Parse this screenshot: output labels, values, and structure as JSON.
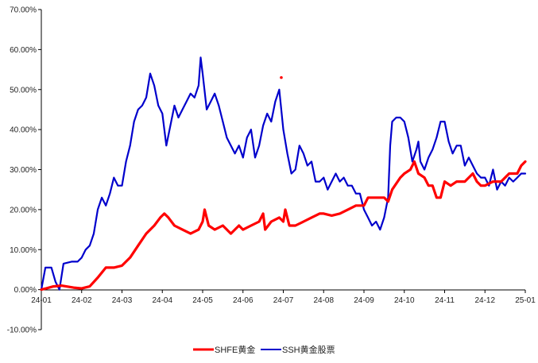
{
  "chart_data": {
    "type": "line",
    "title": "",
    "xlabel": "",
    "ylabel": "",
    "ylim": [
      -0.1,
      0.7
    ],
    "yticks": [
      -0.1,
      0.0,
      0.1,
      0.2,
      0.3,
      0.4,
      0.5,
      0.6,
      0.7
    ],
    "ytick_labels": [
      "-10.00%",
      "0.00%",
      "10.00%",
      "20.00%",
      "30.00%",
      "40.00%",
      "50.00%",
      "60.00%",
      "70.00%"
    ],
    "x_ticks": [
      "24-01",
      "24-02",
      "24-03",
      "24-04",
      "24-05",
      "24-06",
      "24-07",
      "24-08",
      "24-09",
      "24-10",
      "24-11",
      "24-12",
      "25-01"
    ],
    "grid": false,
    "legend_position": "bottom",
    "series": [
      {
        "name": "SHFE黄金",
        "color": "#ff0000",
        "points": [
          [
            0,
            0.0
          ],
          [
            0.12,
            0.003
          ],
          [
            0.3,
            0.008
          ],
          [
            0.5,
            0.01
          ],
          [
            0.8,
            0.005
          ],
          [
            1.0,
            0.003
          ],
          [
            1.2,
            0.008
          ],
          [
            1.4,
            0.03
          ],
          [
            1.6,
            0.055
          ],
          [
            1.8,
            0.055
          ],
          [
            2.0,
            0.06
          ],
          [
            2.2,
            0.08
          ],
          [
            2.4,
            0.11
          ],
          [
            2.6,
            0.14
          ],
          [
            2.8,
            0.16
          ],
          [
            2.95,
            0.18
          ],
          [
            3.05,
            0.19
          ],
          [
            3.15,
            0.18
          ],
          [
            3.3,
            0.16
          ],
          [
            3.5,
            0.15
          ],
          [
            3.7,
            0.14
          ],
          [
            3.9,
            0.15
          ],
          [
            4.0,
            0.17
          ],
          [
            4.05,
            0.2
          ],
          [
            4.15,
            0.16
          ],
          [
            4.3,
            0.15
          ],
          [
            4.5,
            0.16
          ],
          [
            4.7,
            0.14
          ],
          [
            4.9,
            0.16
          ],
          [
            5.0,
            0.15
          ],
          [
            5.2,
            0.16
          ],
          [
            5.4,
            0.17
          ],
          [
            5.5,
            0.19
          ],
          [
            5.55,
            0.15
          ],
          [
            5.7,
            0.17
          ],
          [
            5.9,
            0.18
          ],
          [
            6.0,
            0.17
          ],
          [
            6.05,
            0.2
          ],
          [
            6.15,
            0.16
          ],
          [
            6.3,
            0.16
          ],
          [
            6.5,
            0.17
          ],
          [
            6.7,
            0.18
          ],
          [
            6.9,
            0.19
          ],
          [
            7.0,
            0.19
          ],
          [
            7.2,
            0.185
          ],
          [
            7.4,
            0.19
          ],
          [
            7.6,
            0.2
          ],
          [
            7.8,
            0.21
          ],
          [
            8.0,
            0.21
          ],
          [
            8.1,
            0.23
          ],
          [
            8.3,
            0.23
          ],
          [
            8.5,
            0.23
          ],
          [
            8.6,
            0.22
          ],
          [
            8.7,
            0.25
          ],
          [
            8.9,
            0.28
          ],
          [
            9.0,
            0.29
          ],
          [
            9.15,
            0.3
          ],
          [
            9.25,
            0.32
          ],
          [
            9.35,
            0.29
          ],
          [
            9.5,
            0.28
          ],
          [
            9.6,
            0.26
          ],
          [
            9.7,
            0.26
          ],
          [
            9.8,
            0.23
          ],
          [
            9.9,
            0.23
          ],
          [
            10.0,
            0.27
          ],
          [
            10.15,
            0.26
          ],
          [
            10.3,
            0.27
          ],
          [
            10.5,
            0.27
          ],
          [
            10.7,
            0.29
          ],
          [
            10.8,
            0.27
          ],
          [
            10.9,
            0.26
          ],
          [
            11.0,
            0.26
          ],
          [
            11.2,
            0.27
          ],
          [
            11.4,
            0.27
          ],
          [
            11.6,
            0.29
          ],
          [
            11.8,
            0.29
          ],
          [
            11.9,
            0.31
          ],
          [
            12.0,
            0.32
          ]
        ]
      },
      {
        "name": "SSH黄金股票",
        "color": "#0000cc",
        "points": [
          [
            0,
            0.0
          ],
          [
            0.1,
            0.055
          ],
          [
            0.25,
            0.055
          ],
          [
            0.35,
            0.02
          ],
          [
            0.45,
            0.0
          ],
          [
            0.55,
            0.065
          ],
          [
            0.75,
            0.07
          ],
          [
            0.9,
            0.07
          ],
          [
            1.0,
            0.08
          ],
          [
            1.1,
            0.1
          ],
          [
            1.2,
            0.11
          ],
          [
            1.3,
            0.14
          ],
          [
            1.4,
            0.2
          ],
          [
            1.5,
            0.23
          ],
          [
            1.6,
            0.21
          ],
          [
            1.7,
            0.24
          ],
          [
            1.8,
            0.28
          ],
          [
            1.9,
            0.26
          ],
          [
            2.0,
            0.26
          ],
          [
            2.1,
            0.32
          ],
          [
            2.2,
            0.36
          ],
          [
            2.3,
            0.42
          ],
          [
            2.4,
            0.45
          ],
          [
            2.5,
            0.46
          ],
          [
            2.6,
            0.48
          ],
          [
            2.7,
            0.54
          ],
          [
            2.8,
            0.51
          ],
          [
            2.9,
            0.46
          ],
          [
            3.0,
            0.44
          ],
          [
            3.1,
            0.36
          ],
          [
            3.2,
            0.41
          ],
          [
            3.3,
            0.46
          ],
          [
            3.4,
            0.43
          ],
          [
            3.5,
            0.45
          ],
          [
            3.6,
            0.47
          ],
          [
            3.7,
            0.49
          ],
          [
            3.8,
            0.48
          ],
          [
            3.9,
            0.51
          ],
          [
            3.95,
            0.58
          ],
          [
            4.0,
            0.54
          ],
          [
            4.1,
            0.45
          ],
          [
            4.2,
            0.47
          ],
          [
            4.3,
            0.49
          ],
          [
            4.4,
            0.46
          ],
          [
            4.5,
            0.42
          ],
          [
            4.6,
            0.38
          ],
          [
            4.7,
            0.36
          ],
          [
            4.8,
            0.34
          ],
          [
            4.9,
            0.36
          ],
          [
            5.0,
            0.33
          ],
          [
            5.1,
            0.38
          ],
          [
            5.2,
            0.4
          ],
          [
            5.3,
            0.33
          ],
          [
            5.4,
            0.36
          ],
          [
            5.5,
            0.41
          ],
          [
            5.6,
            0.44
          ],
          [
            5.7,
            0.42
          ],
          [
            5.8,
            0.47
          ],
          [
            5.9,
            0.5
          ],
          [
            6.0,
            0.4
          ],
          [
            6.1,
            0.34
          ],
          [
            6.2,
            0.29
          ],
          [
            6.3,
            0.3
          ],
          [
            6.4,
            0.36
          ],
          [
            6.5,
            0.34
          ],
          [
            6.6,
            0.31
          ],
          [
            6.7,
            0.32
          ],
          [
            6.8,
            0.27
          ],
          [
            6.9,
            0.27
          ],
          [
            7.0,
            0.28
          ],
          [
            7.1,
            0.25
          ],
          [
            7.2,
            0.27
          ],
          [
            7.3,
            0.29
          ],
          [
            7.4,
            0.27
          ],
          [
            7.5,
            0.28
          ],
          [
            7.6,
            0.26
          ],
          [
            7.7,
            0.26
          ],
          [
            7.8,
            0.24
          ],
          [
            7.9,
            0.24
          ],
          [
            8.0,
            0.2
          ],
          [
            8.1,
            0.18
          ],
          [
            8.2,
            0.16
          ],
          [
            8.3,
            0.17
          ],
          [
            8.4,
            0.15
          ],
          [
            8.5,
            0.18
          ],
          [
            8.6,
            0.23
          ],
          [
            8.65,
            0.36
          ],
          [
            8.7,
            0.42
          ],
          [
            8.8,
            0.43
          ],
          [
            8.9,
            0.43
          ],
          [
            9.0,
            0.42
          ],
          [
            9.1,
            0.38
          ],
          [
            9.2,
            0.32
          ],
          [
            9.3,
            0.35
          ],
          [
            9.35,
            0.37
          ],
          [
            9.4,
            0.32
          ],
          [
            9.5,
            0.3
          ],
          [
            9.6,
            0.33
          ],
          [
            9.7,
            0.35
          ],
          [
            9.8,
            0.38
          ],
          [
            9.9,
            0.42
          ],
          [
            10.0,
            0.42
          ],
          [
            10.1,
            0.37
          ],
          [
            10.2,
            0.34
          ],
          [
            10.3,
            0.36
          ],
          [
            10.4,
            0.36
          ],
          [
            10.5,
            0.31
          ],
          [
            10.6,
            0.33
          ],
          [
            10.7,
            0.31
          ],
          [
            10.8,
            0.29
          ],
          [
            10.9,
            0.28
          ],
          [
            11.0,
            0.28
          ],
          [
            11.1,
            0.26
          ],
          [
            11.2,
            0.3
          ],
          [
            11.3,
            0.25
          ],
          [
            11.4,
            0.27
          ],
          [
            11.5,
            0.26
          ],
          [
            11.6,
            0.28
          ],
          [
            11.7,
            0.27
          ],
          [
            11.8,
            0.28
          ],
          [
            11.9,
            0.29
          ],
          [
            12.0,
            0.29
          ]
        ]
      }
    ],
    "stray_points": [
      {
        "x": 5.95,
        "y": 0.53,
        "color": "#ff0000"
      }
    ]
  }
}
